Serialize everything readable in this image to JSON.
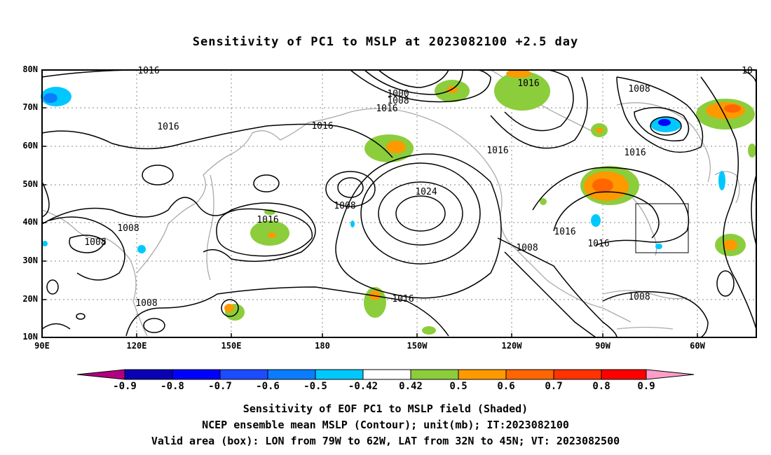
{
  "title": "Sensitivity of PC1 to MSLP at 2023082100 +2.5 day",
  "lat_labels": [
    "80N",
    "70N",
    "60N",
    "50N",
    "40N",
    "30N",
    "20N",
    "10N"
  ],
  "lon_labels": [
    "90E",
    "120E",
    "150E",
    "180",
    "150W",
    "120W",
    "90W",
    "60W"
  ],
  "contour_labels": [
    "1016",
    "1000",
    "1008",
    "1016",
    "1016",
    "1008",
    "1016",
    "1016",
    "1016",
    "1016",
    "1016",
    "1024",
    "1008",
    "1016",
    "1008",
    "1008",
    "1016",
    "1008",
    "1016",
    "1016",
    "1008",
    "1016",
    "1008",
    "10"
  ],
  "colorbar": {
    "labels": [
      "-0.9",
      "-0.8",
      "-0.7",
      "-0.6",
      "-0.5",
      "-0.42",
      "0.42",
      "0.5",
      "0.6",
      "0.7",
      "0.8",
      "0.9"
    ],
    "colors": [
      "#b0007f",
      "#0a00b4",
      "#0000ff",
      "#1d4bff",
      "#0a7dff",
      "#009bff",
      "#00c8ff",
      "#ffffff",
      "#8ccd3c",
      "#ff9900",
      "#ff6600",
      "#ff3300",
      "#ff0000",
      "#ff9ec8"
    ]
  },
  "captions": [
    "Sensitivity of EOF PC1 to MSLP field (Shaded)",
    "NCEP ensemble mean MSLP (Contour); unit(mb); IT:2023082100",
    "Valid area (box): LON from 79W to 62W, LAT from 32N to 45N; VT: 2023082500"
  ],
  "valid_box": {
    "lon_min": -79,
    "lon_max": -62,
    "lat_min": 32,
    "lat_max": 45
  }
}
